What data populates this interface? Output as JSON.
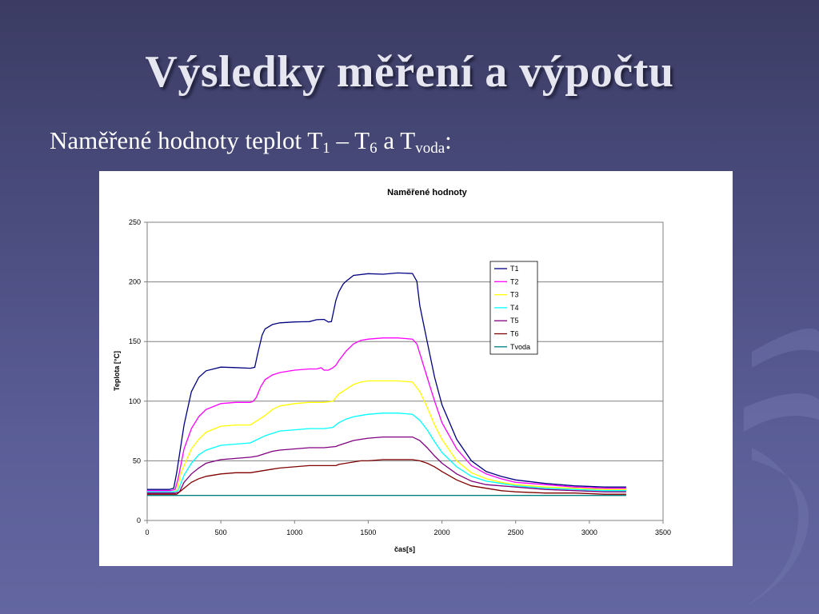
{
  "slide": {
    "title": "Výsledky měření a výpočtu",
    "subtitle": {
      "prefix": "Naměřené hodnoty teplot T",
      "sub1": "1",
      "mid": " – T",
      "sub2": "6",
      "mid2": " a T",
      "sub3": "voda",
      "suffix": ":"
    }
  },
  "chart_data": {
    "type": "line",
    "title": "Naměřené hodnoty",
    "xlabel": "čas[s]",
    "ylabel": "Teplota [°C]",
    "xlim": [
      0,
      3500
    ],
    "ylim": [
      0,
      250
    ],
    "xticks": [
      0,
      500,
      1000,
      1500,
      2000,
      2500,
      3000,
      3500
    ],
    "yticks": [
      0,
      50,
      100,
      150,
      200,
      250
    ],
    "grid": "horizontal",
    "legend": "right, inside plot",
    "series": [
      {
        "name": "T1",
        "color": "#000080",
        "x": [
          0,
          150,
          180,
          200,
          250,
          300,
          350,
          400,
          500,
          600,
          700,
          730,
          750,
          780,
          800,
          850,
          900,
          1000,
          1100,
          1150,
          1200,
          1230,
          1250,
          1280,
          1300,
          1330,
          1350,
          1400,
          1500,
          1600,
          1700,
          1800,
          1830,
          1850,
          1900,
          1950,
          2000,
          2100,
          2200,
          2300,
          2400,
          2500,
          2700,
          2900,
          3100,
          3250
        ],
        "y": [
          26,
          26,
          27,
          40,
          80,
          108,
          120,
          125,
          128,
          128,
          128,
          129,
          140,
          155,
          160,
          164,
          166,
          167,
          167,
          168,
          168,
          166,
          167,
          185,
          192,
          198,
          200,
          205,
          207,
          207,
          208,
          207,
          200,
          180,
          150,
          120,
          97,
          68,
          50,
          41,
          37,
          34,
          31,
          29,
          28,
          28
        ]
      },
      {
        "name": "T2",
        "color": "#ff00ff",
        "x": [
          0,
          160,
          190,
          210,
          250,
          300,
          350,
          400,
          500,
          600,
          700,
          720,
          740,
          770,
          800,
          850,
          900,
          1000,
          1100,
          1150,
          1180,
          1200,
          1230,
          1260,
          1280,
          1300,
          1350,
          1400,
          1450,
          1500,
          1600,
          1700,
          1800,
          1830,
          1850,
          1900,
          1950,
          2000,
          2100,
          2200,
          2300,
          2400,
          2500,
          2700,
          2900,
          3100,
          3250
        ],
        "y": [
          25,
          25,
          26,
          35,
          60,
          77,
          87,
          93,
          98,
          99,
          99,
          100,
          103,
          112,
          118,
          122,
          124,
          126,
          127,
          127,
          128,
          126,
          126,
          128,
          130,
          134,
          142,
          148,
          151,
          152,
          153,
          153,
          152,
          148,
          140,
          120,
          100,
          82,
          60,
          46,
          39,
          35,
          32,
          30,
          28,
          27,
          27
        ]
      },
      {
        "name": "T3",
        "color": "#ffff00",
        "x": [
          0,
          170,
          200,
          230,
          300,
          350,
          400,
          500,
          600,
          700,
          750,
          800,
          850,
          900,
          1000,
          1100,
          1200,
          1260,
          1280,
          1300,
          1350,
          1400,
          1450,
          1500,
          1600,
          1700,
          1800,
          1850,
          1900,
          1950,
          2000,
          2100,
          2200,
          2300,
          2400,
          2500,
          2700,
          2900,
          3100,
          3250
        ],
        "y": [
          24,
          24,
          25,
          40,
          60,
          68,
          74,
          79,
          80,
          80,
          84,
          88,
          93,
          96,
          98,
          99,
          99,
          100,
          103,
          106,
          110,
          114,
          116,
          117,
          117,
          117,
          116,
          108,
          95,
          80,
          68,
          50,
          40,
          35,
          32,
          30,
          28,
          27,
          26,
          26
        ]
      },
      {
        "name": "T4",
        "color": "#00ffff",
        "x": [
          0,
          180,
          210,
          250,
          300,
          350,
          400,
          500,
          600,
          700,
          750,
          800,
          850,
          900,
          1000,
          1100,
          1200,
          1260,
          1300,
          1350,
          1400,
          1450,
          1500,
          1600,
          1700,
          1800,
          1850,
          1900,
          1950,
          2000,
          2100,
          2200,
          2300,
          2400,
          2500,
          2700,
          2900,
          3100,
          3250
        ],
        "y": [
          24,
          24,
          25,
          38,
          48,
          55,
          59,
          63,
          64,
          65,
          68,
          71,
          73,
          75,
          76,
          77,
          77,
          78,
          82,
          85,
          87,
          88,
          89,
          90,
          90,
          89,
          84,
          76,
          66,
          57,
          45,
          37,
          33,
          31,
          29,
          27,
          26,
          25,
          25
        ]
      },
      {
        "name": "T5",
        "color": "#800080",
        "x": [
          0,
          190,
          220,
          250,
          300,
          350,
          400,
          500,
          600,
          700,
          750,
          800,
          850,
          900,
          1000,
          1100,
          1200,
          1280,
          1300,
          1350,
          1400,
          1450,
          1500,
          1600,
          1700,
          1800,
          1850,
          1900,
          1950,
          2000,
          2100,
          2200,
          2300,
          2400,
          2500,
          2700,
          2900,
          3100,
          3250
        ],
        "y": [
          23,
          23,
          24,
          32,
          39,
          44,
          48,
          51,
          52,
          53,
          54,
          56,
          58,
          59,
          60,
          61,
          61,
          62,
          63,
          65,
          67,
          68,
          69,
          70,
          70,
          70,
          67,
          61,
          54,
          48,
          39,
          33,
          30,
          29,
          28,
          26,
          25,
          24,
          24
        ]
      },
      {
        "name": "T6",
        "color": "#800000",
        "x": [
          0,
          200,
          250,
          300,
          350,
          400,
          500,
          600,
          700,
          750,
          800,
          850,
          900,
          1000,
          1100,
          1200,
          1280,
          1300,
          1350,
          1400,
          1450,
          1500,
          1600,
          1700,
          1800,
          1850,
          1900,
          1950,
          2000,
          2100,
          2200,
          2300,
          2400,
          2500,
          2700,
          2900,
          3100,
          3250
        ],
        "y": [
          22,
          22,
          27,
          32,
          35,
          37,
          39,
          40,
          40,
          41,
          42,
          43,
          44,
          45,
          46,
          46,
          46,
          47,
          48,
          49,
          50,
          50,
          51,
          51,
          51,
          50,
          48,
          45,
          41,
          34,
          29,
          27,
          25,
          24,
          23,
          23,
          22,
          22
        ]
      },
      {
        "name": "Tvoda",
        "color": "#008080",
        "x": [
          0,
          500,
          1000,
          1500,
          2000,
          2500,
          3000,
          3250
        ],
        "y": [
          21,
          21,
          21,
          21,
          21,
          21,
          21,
          21
        ]
      }
    ]
  }
}
